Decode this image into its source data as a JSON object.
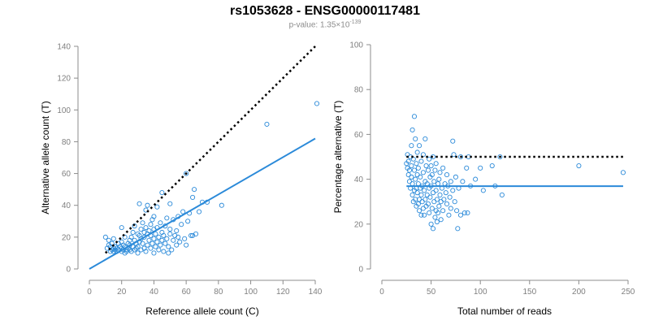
{
  "title": "rs1053628 - ENSG00000117481",
  "subtitle_prefix": "p-value: 1.35×10",
  "subtitle_exponent": "-139",
  "colors": {
    "points": "#2b8ad9",
    "fit_line": "#2b8ad9",
    "reference_line": "#000000",
    "axis": "#8c8c8c",
    "tick_text": "#7f7f7f"
  },
  "chart_data": [
    {
      "type": "scatter",
      "xlabel": "Reference allele count (C)",
      "ylabel": "Alternative allele count (T)",
      "xlim": [
        0,
        140
      ],
      "ylim": [
        0,
        140
      ],
      "xticks": [
        "0",
        "20",
        "40",
        "60",
        "80",
        "100",
        "120",
        "140"
      ],
      "yticks": [
        "0",
        "20",
        "40",
        "60",
        "80",
        "100",
        "120",
        "140"
      ],
      "reference_line": {
        "style": "dotted",
        "from": [
          10,
          10
        ],
        "to": [
          140,
          140
        ]
      },
      "fit_line": {
        "style": "solid",
        "from": [
          0,
          0
        ],
        "to": [
          140,
          82
        ]
      },
      "points": [
        [
          10,
          20
        ],
        [
          11,
          13
        ],
        [
          12,
          15
        ],
        [
          12,
          18
        ],
        [
          13,
          11
        ],
        [
          13,
          14
        ],
        [
          14,
          12
        ],
        [
          14,
          16
        ],
        [
          15,
          11
        ],
        [
          15,
          13
        ],
        [
          15,
          19
        ],
        [
          16,
          12
        ],
        [
          16,
          14
        ],
        [
          17,
          11
        ],
        [
          17,
          13
        ],
        [
          18,
          16
        ],
        [
          18,
          12
        ],
        [
          19,
          14
        ],
        [
          20,
          11
        ],
        [
          20,
          13
        ],
        [
          20,
          17
        ],
        [
          20,
          26
        ],
        [
          21,
          12
        ],
        [
          21,
          15
        ],
        [
          22,
          10
        ],
        [
          22,
          14
        ],
        [
          22,
          20
        ],
        [
          23,
          11
        ],
        [
          23,
          12
        ],
        [
          24,
          16
        ],
        [
          24,
          13
        ],
        [
          25,
          15
        ],
        [
          25,
          18
        ],
        [
          25,
          12
        ],
        [
          26,
          11
        ],
        [
          26,
          20
        ],
        [
          27,
          23
        ],
        [
          27,
          14
        ],
        [
          28,
          12
        ],
        [
          28,
          27
        ],
        [
          28,
          18
        ],
        [
          29,
          13
        ],
        [
          29,
          16
        ],
        [
          30,
          10
        ],
        [
          30,
          22
        ],
        [
          30,
          14
        ],
        [
          31,
          21
        ],
        [
          31,
          17
        ],
        [
          31,
          41
        ],
        [
          32,
          12
        ],
        [
          32,
          25
        ],
        [
          32,
          19
        ],
        [
          33,
          16
        ],
        [
          33,
          29
        ],
        [
          34,
          13
        ],
        [
          34,
          20
        ],
        [
          34,
          23
        ],
        [
          35,
          11
        ],
        [
          35,
          26
        ],
        [
          35,
          37
        ],
        [
          36,
          15
        ],
        [
          36,
          22
        ],
        [
          36,
          40
        ],
        [
          37,
          18
        ],
        [
          37,
          24
        ],
        [
          38,
          13
        ],
        [
          38,
          28
        ],
        [
          38,
          21
        ],
        [
          39,
          16
        ],
        [
          39,
          31
        ],
        [
          40,
          10
        ],
        [
          40,
          19
        ],
        [
          40,
          25
        ],
        [
          40,
          33
        ],
        [
          41,
          14
        ],
        [
          41,
          22
        ],
        [
          42,
          17
        ],
        [
          42,
          26
        ],
        [
          42,
          39
        ],
        [
          43,
          20
        ],
        [
          43,
          12
        ],
        [
          44,
          15
        ],
        [
          44,
          29
        ],
        [
          45,
          18
        ],
        [
          45,
          23
        ],
        [
          45,
          48
        ],
        [
          46,
          21
        ],
        [
          46,
          11
        ],
        [
          47,
          16
        ],
        [
          47,
          27
        ],
        [
          48,
          19
        ],
        [
          48,
          32
        ],
        [
          49,
          14
        ],
        [
          49,
          10
        ],
        [
          50,
          22
        ],
        [
          50,
          41
        ],
        [
          50,
          25
        ],
        [
          51,
          12
        ],
        [
          52,
          18
        ],
        [
          52,
          31
        ],
        [
          53,
          21
        ],
        [
          54,
          15
        ],
        [
          54,
          24
        ],
        [
          55,
          33
        ],
        [
          55,
          20
        ],
        [
          56,
          17
        ],
        [
          57,
          28
        ],
        [
          58,
          36
        ],
        [
          59,
          19
        ],
        [
          60,
          15
        ],
        [
          60,
          60
        ],
        [
          61,
          30
        ],
        [
          62,
          35
        ],
        [
          63,
          21
        ],
        [
          64,
          21
        ],
        [
          64,
          45
        ],
        [
          65,
          50
        ],
        [
          66,
          22
        ],
        [
          68,
          36
        ],
        [
          70,
          42
        ],
        [
          73,
          42
        ],
        [
          82,
          40
        ],
        [
          110,
          91
        ],
        [
          141,
          104
        ]
      ]
    },
    {
      "type": "scatter",
      "xlabel": "Total number of reads",
      "ylabel": "Percentage alternative (T)",
      "xlim": [
        0,
        250
      ],
      "ylim": [
        0,
        100
      ],
      "xticks": [
        "0",
        "50",
        "100",
        "150",
        "200",
        "250"
      ],
      "yticks": [
        "0",
        "20",
        "40",
        "60",
        "80",
        "100"
      ],
      "reference_line": {
        "style": "dotted",
        "y": 50,
        "from_x": 25,
        "to_x": 245
      },
      "fit_line": {
        "style": "solid",
        "y": 36.9,
        "from_x": 25,
        "to_x": 245
      },
      "points": [
        [
          25,
          47
        ],
        [
          26,
          45
        ],
        [
          26,
          51
        ],
        [
          27,
          42
        ],
        [
          27,
          48
        ],
        [
          28,
          44
        ],
        [
          28,
          39
        ],
        [
          29,
          50
        ],
        [
          29,
          36
        ],
        [
          30,
          55
        ],
        [
          30,
          41
        ],
        [
          30,
          46
        ],
        [
          31,
          33
        ],
        [
          31,
          62
        ],
        [
          31,
          38
        ],
        [
          32,
          30
        ],
        [
          32,
          49
        ],
        [
          33,
          68
        ],
        [
          33,
          35
        ],
        [
          33,
          44
        ],
        [
          34,
          31
        ],
        [
          34,
          58
        ],
        [
          34,
          40
        ],
        [
          35,
          28
        ],
        [
          35,
          47
        ],
        [
          35,
          36
        ],
        [
          36,
          34
        ],
        [
          36,
          42
        ],
        [
          36,
          52
        ],
        [
          37,
          29
        ],
        [
          37,
          38
        ],
        [
          37,
          45
        ],
        [
          38,
          31
        ],
        [
          38,
          55
        ],
        [
          38,
          26
        ],
        [
          39,
          41
        ],
        [
          39,
          36
        ],
        [
          40,
          24
        ],
        [
          40,
          33
        ],
        [
          40,
          48
        ],
        [
          41,
          30
        ],
        [
          41,
          37
        ],
        [
          42,
          43
        ],
        [
          42,
          27
        ],
        [
          42,
          51
        ],
        [
          43,
          35
        ],
        [
          43,
          24
        ],
        [
          44,
          39
        ],
        [
          44,
          31
        ],
        [
          44,
          58
        ],
        [
          45,
          46
        ],
        [
          45,
          28
        ],
        [
          46,
          33
        ],
        [
          46,
          38
        ],
        [
          47,
          29
        ],
        [
          47,
          44
        ],
        [
          48,
          36
        ],
        [
          48,
          25
        ],
        [
          48,
          49
        ],
        [
          49,
          41
        ],
        [
          49,
          32
        ],
        [
          50,
          20
        ],
        [
          50,
          37
        ],
        [
          50,
          46
        ],
        [
          51,
          27
        ],
        [
          51,
          42
        ],
        [
          52,
          34
        ],
        [
          52,
          18
        ],
        [
          52,
          50
        ],
        [
          53,
          30
        ],
        [
          53,
          39
        ],
        [
          54,
          23
        ],
        [
          54,
          44
        ],
        [
          55,
          26
        ],
        [
          55,
          35
        ],
        [
          55,
          47
        ],
        [
          56,
          21
        ],
        [
          56,
          31
        ],
        [
          57,
          38
        ],
        [
          57,
          25
        ],
        [
          58,
          40
        ],
        [
          58,
          28
        ],
        [
          59,
          33
        ],
        [
          59,
          43
        ],
        [
          60,
          22
        ],
        [
          60,
          30
        ],
        [
          61,
          36
        ],
        [
          62,
          26
        ],
        [
          62,
          45
        ],
        [
          63,
          31
        ],
        [
          64,
          38
        ],
        [
          65,
          34
        ],
        [
          66,
          29
        ],
        [
          66,
          42
        ],
        [
          67,
          37
        ],
        [
          68,
          24
        ],
        [
          69,
          32
        ],
        [
          70,
          39
        ],
        [
          70,
          27
        ],
        [
          72,
          57
        ],
        [
          72,
          35
        ],
        [
          73,
          51
        ],
        [
          74,
          30
        ],
        [
          75,
          41
        ],
        [
          76,
          26
        ],
        [
          77,
          18
        ],
        [
          78,
          36
        ],
        [
          80,
          50
        ],
        [
          80,
          24
        ],
        [
          82,
          39
        ],
        [
          84,
          25
        ],
        [
          86,
          45
        ],
        [
          87,
          25
        ],
        [
          88,
          50
        ],
        [
          90,
          37
        ],
        [
          95,
          40
        ],
        [
          100,
          45
        ],
        [
          103,
          35
        ],
        [
          112,
          46
        ],
        [
          115,
          37
        ],
        [
          120,
          50
        ],
        [
          122,
          33
        ],
        [
          200,
          46
        ],
        [
          245,
          43
        ]
      ]
    }
  ]
}
